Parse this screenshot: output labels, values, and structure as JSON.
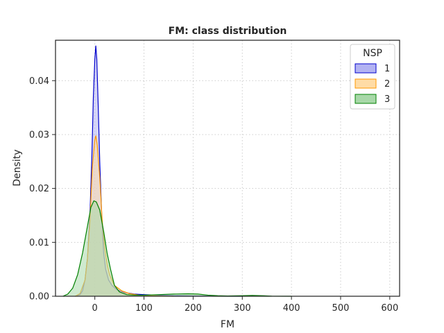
{
  "chart_data": {
    "type": "area",
    "title": "FM: class distribution",
    "xlabel": "FM",
    "ylabel": "Density",
    "xlim": [
      -80,
      620
    ],
    "ylim": [
      0,
      0.0475
    ],
    "xticks": [
      0,
      100,
      200,
      300,
      400,
      500,
      600
    ],
    "yticks": [
      0.0,
      0.01,
      0.02,
      0.03,
      0.04
    ],
    "xtick_labels": [
      "0",
      "100",
      "200",
      "300",
      "400",
      "500",
      "600"
    ],
    "ytick_labels": [
      "0.00",
      "0.01",
      "0.02",
      "0.03",
      "0.04"
    ],
    "grid": true,
    "legend": {
      "title": "NSP",
      "position": "top-right"
    },
    "series": [
      {
        "name": "1",
        "color": "#0000cc",
        "fill": "#b3b3f2",
        "points": [
          [
            -40,
            0
          ],
          [
            -30,
            0.0003
          ],
          [
            -25,
            0.001
          ],
          [
            -20,
            0.003
          ],
          [
            -15,
            0.007
          ],
          [
            -10,
            0.015
          ],
          [
            -6,
            0.026
          ],
          [
            -3,
            0.037
          ],
          [
            0,
            0.044
          ],
          [
            2,
            0.0465
          ],
          [
            4,
            0.044
          ],
          [
            7,
            0.035
          ],
          [
            10,
            0.025
          ],
          [
            14,
            0.015
          ],
          [
            18,
            0.008
          ],
          [
            22,
            0.005
          ],
          [
            28,
            0.003
          ],
          [
            35,
            0.002
          ],
          [
            45,
            0.0012
          ],
          [
            60,
            0.0007
          ],
          [
            80,
            0.0004
          ],
          [
            100,
            0.0003
          ],
          [
            130,
            0.0002
          ],
          [
            160,
            0.0001
          ],
          [
            200,
            5e-05
          ],
          [
            250,
            2e-05
          ],
          [
            300,
            0
          ]
        ]
      },
      {
        "name": "2",
        "color": "#ff9900",
        "fill": "#ffdca6",
        "points": [
          [
            -40,
            0
          ],
          [
            -30,
            0.0005
          ],
          [
            -20,
            0.003
          ],
          [
            -15,
            0.007
          ],
          [
            -10,
            0.014
          ],
          [
            -5,
            0.024
          ],
          [
            0,
            0.029
          ],
          [
            2,
            0.0298
          ],
          [
            5,
            0.028
          ],
          [
            10,
            0.022
          ],
          [
            15,
            0.014
          ],
          [
            20,
            0.009
          ],
          [
            25,
            0.006
          ],
          [
            30,
            0.004
          ],
          [
            40,
            0.002
          ],
          [
            55,
            0.001
          ],
          [
            70,
            0.0005
          ],
          [
            90,
            0.0002
          ],
          [
            120,
            0.0001
          ],
          [
            160,
            0
          ]
        ]
      },
      {
        "name": "3",
        "color": "#008000",
        "fill": "#a8d8a8",
        "points": [
          [
            -65,
            0
          ],
          [
            -55,
            0.0004
          ],
          [
            -45,
            0.0015
          ],
          [
            -35,
            0.004
          ],
          [
            -25,
            0.008
          ],
          [
            -15,
            0.013
          ],
          [
            -8,
            0.0165
          ],
          [
            -2,
            0.0177
          ],
          [
            3,
            0.0175
          ],
          [
            10,
            0.016
          ],
          [
            18,
            0.012
          ],
          [
            25,
            0.008
          ],
          [
            32,
            0.005
          ],
          [
            40,
            0.002
          ],
          [
            50,
            0.0008
          ],
          [
            65,
            0.0003
          ],
          [
            80,
            0.0002
          ],
          [
            100,
            0.0002
          ],
          [
            130,
            0.0003
          ],
          [
            160,
            0.0004
          ],
          [
            190,
            0.00045
          ],
          [
            210,
            0.0004
          ],
          [
            230,
            0.0002
          ],
          [
            250,
            0.0001
          ],
          [
            270,
            5e-05
          ],
          [
            300,
            0.0001
          ],
          [
            320,
            0.00015
          ],
          [
            340,
            0.0001
          ],
          [
            360,
            2e-05
          ],
          [
            400,
            0
          ]
        ]
      }
    ]
  }
}
